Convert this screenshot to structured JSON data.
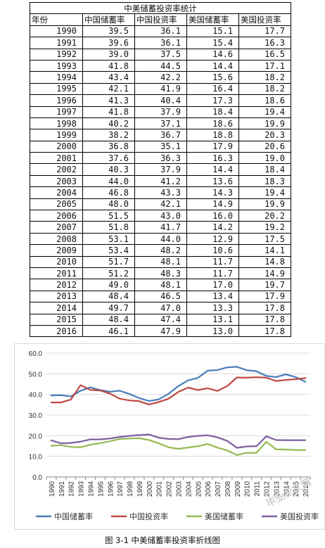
{
  "table": {
    "title": "中美储蓄投资率统计",
    "headers": [
      "年份",
      "中国储蓄率",
      "中国投资率",
      "美国储蓄率",
      "美国投资率"
    ],
    "rows": [
      [
        "1990",
        "39.5",
        "36.1",
        "15.1",
        "17.7"
      ],
      [
        "1991",
        "39.6",
        "36.1",
        "15.4",
        "16.3"
      ],
      [
        "1992",
        "39.0",
        "37.5",
        "14.6",
        "16.5"
      ],
      [
        "1993",
        "41.8",
        "44.5",
        "14.4",
        "17.1"
      ],
      [
        "1994",
        "43.4",
        "42.2",
        "15.6",
        "18.2"
      ],
      [
        "1995",
        "42.1",
        "41.9",
        "16.4",
        "18.2"
      ],
      [
        "1996",
        "41.3",
        "40.4",
        "17.3",
        "18.6"
      ],
      [
        "1997",
        "41.8",
        "37.9",
        "18.4",
        "19.4"
      ],
      [
        "1998",
        "40.2",
        "37.1",
        "18.6",
        "19.9"
      ],
      [
        "1999",
        "38.2",
        "36.7",
        "18.8",
        "20.3"
      ],
      [
        "2000",
        "36.8",
        "35.1",
        "17.9",
        "20.6"
      ],
      [
        "2001",
        "37.6",
        "36.3",
        "16.3",
        "19.0"
      ],
      [
        "2002",
        "40.3",
        "37.9",
        "14.4",
        "18.4"
      ],
      [
        "2003",
        "44.0",
        "41.2",
        "13.6",
        "18.3"
      ],
      [
        "2004",
        "46.8",
        "43.3",
        "14.3",
        "19.4"
      ],
      [
        "2005",
        "48.0",
        "42.1",
        "14.9",
        "19.9"
      ],
      [
        "2006",
        "51.5",
        "43.0",
        "16.0",
        "20.2"
      ],
      [
        "2007",
        "51.8",
        "41.7",
        "14.2",
        "19.2"
      ],
      [
        "2008",
        "53.1",
        "44.0",
        "12.9",
        "17.5"
      ],
      [
        "2009",
        "53.4",
        "48.2",
        "10.6",
        "14.1"
      ],
      [
        "2010",
        "51.7",
        "48.1",
        "11.7",
        "14.8"
      ],
      [
        "2011",
        "51.2",
        "48.3",
        "11.7",
        "14.9"
      ],
      [
        "2012",
        "49.0",
        "48.1",
        "17.0",
        "19.7"
      ],
      [
        "2013",
        "48.4",
        "46.5",
        "13.4",
        "17.9"
      ],
      [
        "2014",
        "49.7",
        "47.0",
        "13.3",
        "17.8"
      ],
      [
        "2015",
        "48.4",
        "47.4",
        "13.1",
        "17.8"
      ],
      [
        "2016",
        "46.1",
        "47.9",
        "13.0",
        "17.8"
      ]
    ]
  },
  "chart_data": {
    "type": "line",
    "title": "",
    "xlabel": "",
    "ylabel": "",
    "ylim": [
      0,
      60
    ],
    "yticks": [
      "0.0",
      "10.0",
      "20.0",
      "30.0",
      "40.0",
      "50.0",
      "60.0"
    ],
    "grid": true,
    "legend_position": "bottom",
    "x": [
      "1990",
      "1991",
      "1992",
      "1993",
      "1994",
      "1995",
      "1996",
      "1997",
      "1998",
      "1999",
      "2000",
      "2001",
      "2002",
      "2003",
      "2004",
      "2005",
      "2006",
      "2007",
      "2008",
      "2009",
      "2010",
      "2011",
      "2012",
      "2013",
      "2014",
      "2015",
      "2016"
    ],
    "series": [
      {
        "name": "中国储蓄率",
        "color": "#4a7ebb",
        "values": [
          39.5,
          39.6,
          39.0,
          41.8,
          43.4,
          42.1,
          41.3,
          41.8,
          40.2,
          38.2,
          36.8,
          37.6,
          40.3,
          44.0,
          46.8,
          48.0,
          51.5,
          51.8,
          53.1,
          53.4,
          51.7,
          51.2,
          49.0,
          48.4,
          49.7,
          48.4,
          46.1
        ]
      },
      {
        "name": "中国投资率",
        "color": "#be4b48",
        "values": [
          36.1,
          36.1,
          37.5,
          44.5,
          42.2,
          41.9,
          40.4,
          37.9,
          37.1,
          36.7,
          35.1,
          36.3,
          37.9,
          41.2,
          43.3,
          42.1,
          43.0,
          41.7,
          44.0,
          48.2,
          48.1,
          48.3,
          48.1,
          46.5,
          47.0,
          47.4,
          47.9
        ]
      },
      {
        "name": "美国储蓄率",
        "color": "#98b954",
        "values": [
          15.1,
          15.4,
          14.6,
          14.4,
          15.6,
          16.4,
          17.3,
          18.4,
          18.6,
          18.8,
          17.9,
          16.3,
          14.4,
          13.6,
          14.3,
          14.9,
          16.0,
          14.2,
          12.9,
          10.6,
          11.7,
          11.7,
          17.0,
          13.4,
          13.3,
          13.1,
          13.0
        ]
      },
      {
        "name": "美国投资率",
        "color": "#7d60a0",
        "values": [
          17.7,
          16.3,
          16.5,
          17.1,
          18.2,
          18.2,
          18.6,
          19.4,
          19.9,
          20.3,
          20.6,
          19.0,
          18.4,
          18.3,
          19.4,
          19.9,
          20.2,
          19.2,
          17.5,
          14.1,
          14.8,
          14.9,
          19.7,
          17.9,
          17.8,
          17.8,
          17.8
        ]
      }
    ]
  },
  "caption": "图 3-1 中美储蓄率投资率折线图",
  "watermark": "毕业论文网"
}
